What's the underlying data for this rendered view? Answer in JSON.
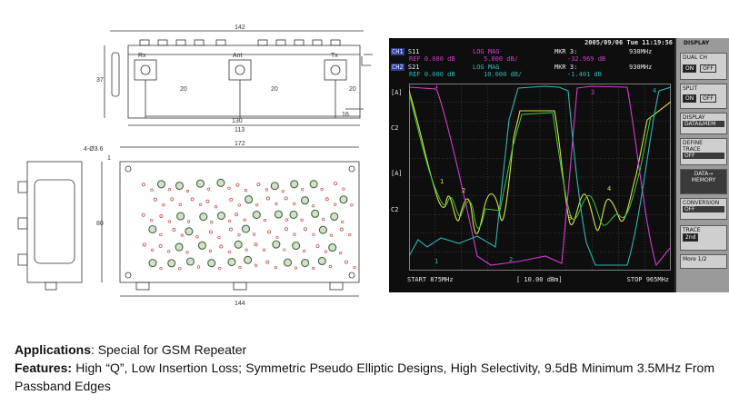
{
  "drawing": {
    "port_labels": [
      "Rx",
      "Ant",
      "Tx"
    ],
    "dims_top": {
      "overall_width": "142",
      "height_side": "37",
      "port_spacing_1": "20",
      "port_spacing_2": "20",
      "port_spacing_3": "20",
      "edge_offset": "16",
      "inner_width": "130",
      "body_width": "113"
    },
    "dims_mid": {
      "hole_note": "4-Ø3.6",
      "overall_width": "172",
      "height": "80",
      "bottom_width": "144",
      "edge_offset": "1"
    }
  },
  "analyzer": {
    "datetime": "2005/09/06 Tue 11:19:56",
    "ch1": {
      "tag": "CH1",
      "param": "S11",
      "format": "LOG MAG",
      "ref": "REF  0.000 dB",
      "scale": "5.000 dB/",
      "marker": "MKR  3:",
      "freq": "930MHz",
      "value": "-32.969 dB"
    },
    "ch2": {
      "tag": "CH2",
      "param": "S21",
      "format": "LOG MAG",
      "ref": "REF  0.000 dB",
      "scale": "10.000 dB/",
      "marker": "MKR  3:",
      "freq": "930MHz",
      "value": "-1.401 dB"
    },
    "side_labels": [
      "[A]",
      "C2",
      "[A]",
      "C2"
    ],
    "start": "START 875MHz",
    "ref_level": "[ 10.00 dBm]",
    "stop": "STOP 965MHz",
    "softkeys": {
      "title": "DISPLAY",
      "dual": "DUAL CH",
      "dual_on": "ON",
      "dual_off": "OFF",
      "split": "SPLIT",
      "split_on": "ON",
      "split_off": "OFF",
      "display": "DISPLAY",
      "display_val": "DATA&MEM",
      "define": "DEFINE",
      "trace": "TRACE",
      "trace_off": "OFF",
      "data_mem_1": "DATA→",
      "data_mem_2": "MEMORY",
      "conversion": "CONVERSION",
      "conversion_off": "OFF",
      "trace2": "TRACE",
      "trace2_val": "2nd",
      "more": "More 1/2"
    },
    "colors": {
      "s11": "#d23ccf",
      "s21": "#2bb8b0",
      "ch2_trace": "#d8e14a",
      "ch2_trace_b": "#46c83c",
      "grid": "#5a5a5a"
    }
  },
  "text": {
    "applications_label": "Applications",
    "applications_value": ": Special for GSM Repeater",
    "features_label": "Features:",
    "features_value": " High “Q”, Low Insertion Loss; Symmetric Pseudo Elliptic Designs, High Selectivity, 9.5dB Minimum 3.5MHz From Passband Edges"
  }
}
